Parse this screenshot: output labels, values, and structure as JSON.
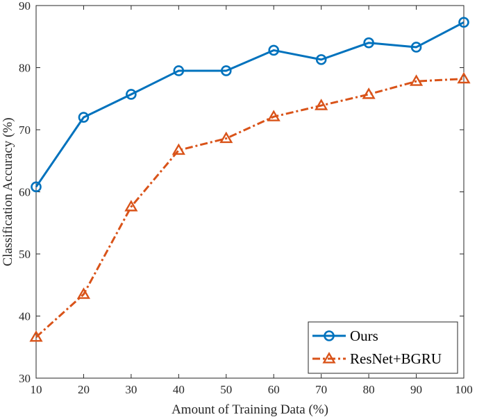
{
  "chart_data": {
    "type": "line",
    "title": "",
    "xlabel": "Amount of Training Data (%)",
    "ylabel": "Classification Accuracy (%)",
    "x": [
      10,
      20,
      30,
      40,
      50,
      60,
      70,
      80,
      90,
      100
    ],
    "xlim": [
      10,
      100
    ],
    "ylim": [
      30,
      90
    ],
    "xticks": [
      10,
      20,
      30,
      40,
      50,
      60,
      70,
      80,
      90,
      100
    ],
    "yticks": [
      30,
      40,
      50,
      60,
      70,
      80,
      90
    ],
    "grid": false,
    "legend_position": "bottom-right",
    "series": [
      {
        "name": "Ours",
        "values": [
          60.8,
          72.0,
          75.7,
          79.5,
          79.5,
          82.8,
          81.3,
          84.0,
          83.3,
          87.3
        ],
        "color": "#0072BD",
        "marker": "circle",
        "line_style": "solid"
      },
      {
        "name": "ResNet+BGRU",
        "values": [
          36.6,
          43.5,
          57.6,
          66.7,
          68.6,
          72.1,
          73.9,
          75.7,
          77.8,
          78.2
        ],
        "color": "#D95319",
        "marker": "triangle",
        "line_style": "dash-dot"
      }
    ]
  }
}
